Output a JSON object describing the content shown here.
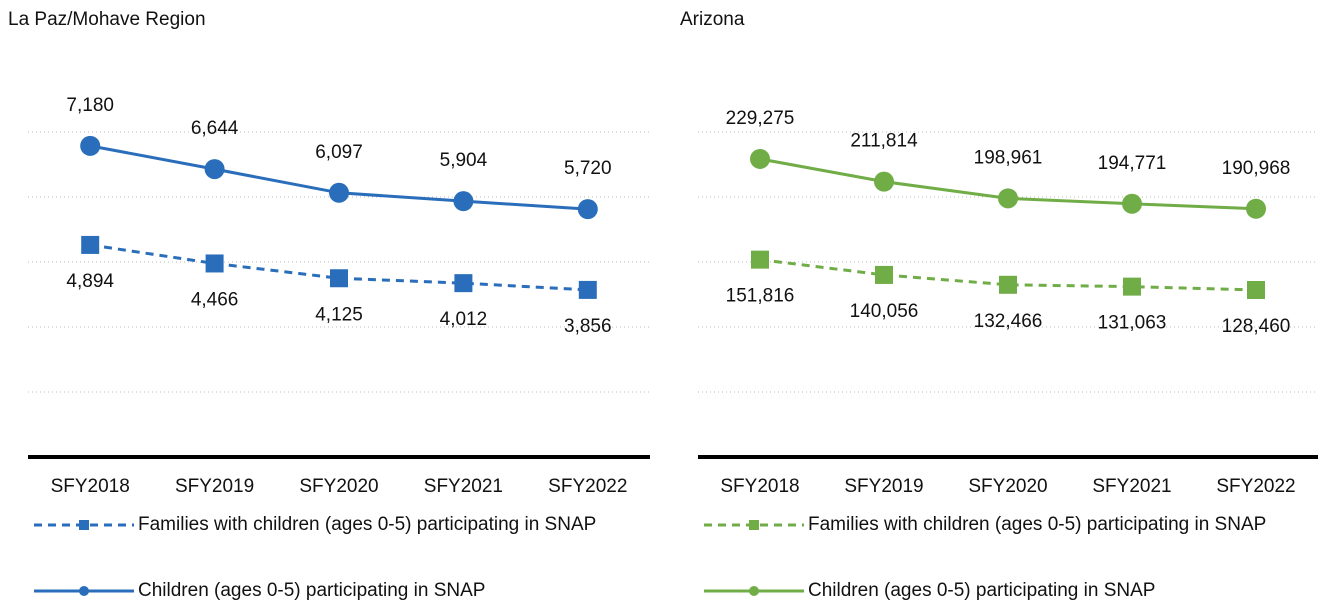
{
  "chart_data": [
    {
      "type": "line",
      "title": "La Paz/Mohave Region",
      "categories": [
        "SFY2018",
        "SFY2019",
        "SFY2020",
        "SFY2021",
        "SFY2022"
      ],
      "series": [
        {
          "name": "Families with children (ages 0-5) participating in SNAP",
          "color": "#2a6ebb",
          "marker": "square",
          "dash": true,
          "values": [
            4894,
            4466,
            4125,
            4012,
            3856
          ],
          "value_labels": [
            "4,894",
            "4,466",
            "4,125",
            "4,012",
            "3,856"
          ]
        },
        {
          "name": "Children (ages 0-5) participating in SNAP",
          "color": "#2a6ebb",
          "marker": "circle",
          "dash": false,
          "values": [
            7180,
            6644,
            6097,
            5904,
            5720
          ],
          "value_labels": [
            "7,180",
            "6,644",
            "6,097",
            "5,904",
            "5,720"
          ]
        }
      ],
      "ylim": [
        0,
        9000
      ],
      "yticks": [
        0,
        1500,
        3000,
        4500,
        6000,
        7500
      ],
      "grid": true
    },
    {
      "type": "line",
      "title": "Arizona",
      "categories": [
        "SFY2018",
        "SFY2019",
        "SFY2020",
        "SFY2021",
        "SFY2022"
      ],
      "series": [
        {
          "name": "Families with children (ages 0-5) participating in SNAP",
          "color": "#70ad47",
          "marker": "square",
          "dash": true,
          "values": [
            151816,
            140056,
            132466,
            131063,
            128460
          ],
          "value_labels": [
            "151,816",
            "140,056",
            "132,466",
            "131,063",
            "128,460"
          ]
        },
        {
          "name": "Children (ages 0-5) participating in SNAP",
          "color": "#70ad47",
          "marker": "circle",
          "dash": false,
          "values": [
            229275,
            211814,
            198961,
            194771,
            190968
          ],
          "value_labels": [
            "229,275",
            "211,814",
            "198,961",
            "194,771",
            "190,968"
          ]
        }
      ],
      "ylim": [
        0,
        300000
      ],
      "yticks": [
        0,
        50000,
        100000,
        150000,
        200000,
        250000
      ],
      "grid": true
    }
  ]
}
